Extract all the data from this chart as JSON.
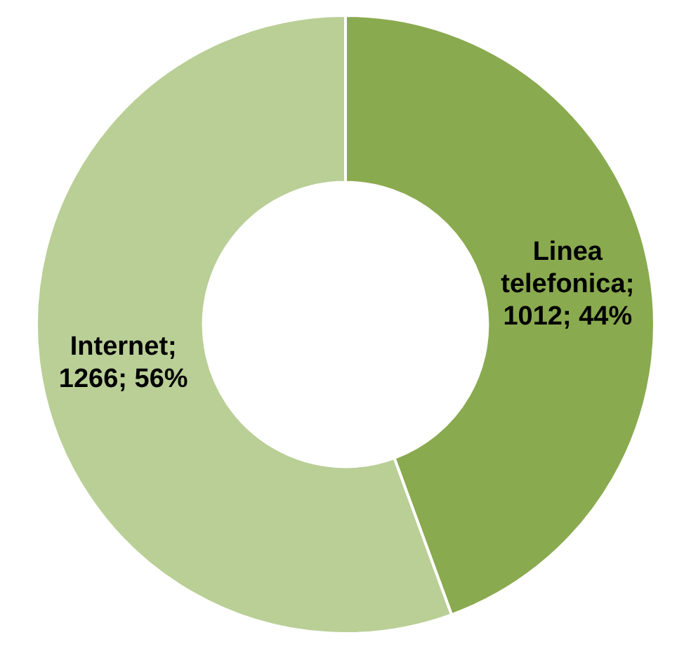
{
  "chart_data": {
    "type": "donut",
    "categories": [
      "Linea telefonica",
      "Internet"
    ],
    "values": [
      1012,
      1266
    ],
    "colors": [
      "#8aaa4f",
      "#b9cf96"
    ],
    "value_labels": [
      "; 1012; 44%",
      "; 1266; 56%"
    ],
    "legend": false
  }
}
